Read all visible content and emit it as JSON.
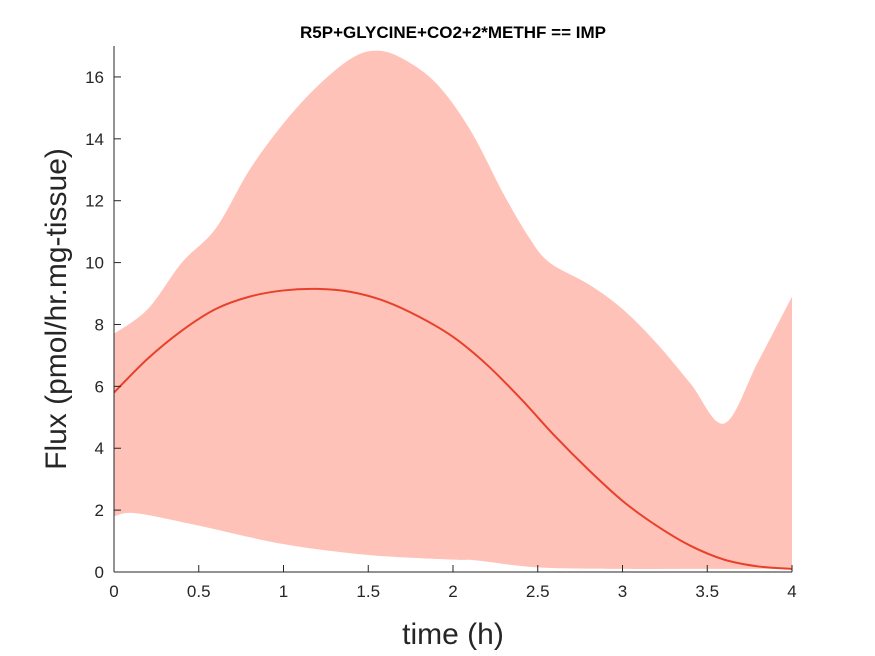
{
  "chart_data": {
    "type": "area",
    "title": "R5P+GLYCINE+CO2+2*METHF == IMP",
    "xlabel": "time (h)",
    "ylabel": "Flux (pmol/hr.mg-tissue)",
    "xlim": [
      0,
      4
    ],
    "ylim": [
      0,
      17
    ],
    "xticks": [
      0,
      0.5,
      1,
      1.5,
      2,
      2.5,
      3,
      3.5,
      4
    ],
    "xtick_labels": [
      "0",
      "0.5",
      "1",
      "1.5",
      "2",
      "2.5",
      "3",
      "3.5",
      "4"
    ],
    "yticks": [
      0,
      2,
      4,
      6,
      8,
      10,
      12,
      14,
      16
    ],
    "ytick_labels": [
      "0",
      "2",
      "4",
      "6",
      "8",
      "10",
      "12",
      "14",
      "16"
    ],
    "grid": false,
    "colors": {
      "band": "#ffc2b8",
      "line": "#e8412b",
      "axis": "#262626"
    },
    "series": [
      {
        "role": "mean",
        "x": [
          0,
          0.2,
          0.4,
          0.6,
          0.8,
          1.0,
          1.2,
          1.4,
          1.6,
          1.8,
          2.0,
          2.2,
          2.4,
          2.6,
          2.8,
          3.0,
          3.2,
          3.4,
          3.6,
          3.8,
          4.0
        ],
        "y": [
          5.8,
          6.9,
          7.8,
          8.5,
          8.9,
          9.1,
          9.15,
          9.05,
          8.75,
          8.25,
          7.6,
          6.7,
          5.6,
          4.4,
          3.3,
          2.3,
          1.5,
          0.85,
          0.4,
          0.18,
          0.1
        ]
      },
      {
        "role": "upper-bound",
        "x": [
          0,
          0.2,
          0.4,
          0.6,
          0.8,
          1.0,
          1.2,
          1.4,
          1.55,
          1.7,
          1.9,
          2.1,
          2.3,
          2.45,
          2.57,
          2.8,
          3.0,
          3.2,
          3.4,
          3.6,
          3.8,
          4.0
        ],
        "y": [
          7.7,
          8.5,
          10.0,
          11.1,
          13.0,
          14.5,
          15.7,
          16.6,
          16.85,
          16.6,
          15.8,
          14.3,
          12.2,
          10.8,
          10.0,
          9.3,
          8.5,
          7.4,
          6.1,
          4.8,
          6.8,
          8.9
        ]
      },
      {
        "role": "lower-bound",
        "x": [
          0,
          0.13,
          0.5,
          1.0,
          1.5,
          2.0,
          2.13,
          2.5,
          3.0,
          3.5,
          4.0
        ],
        "y": [
          1.8,
          1.9,
          1.5,
          0.9,
          0.55,
          0.4,
          0.38,
          0.15,
          0.1,
          0.1,
          0.1
        ]
      }
    ]
  }
}
